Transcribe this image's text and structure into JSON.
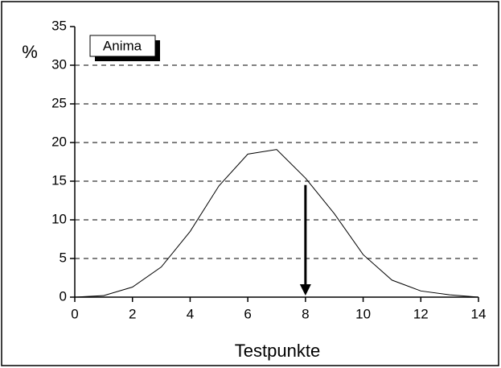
{
  "chart_data": {
    "type": "line",
    "x": [
      0,
      1,
      2,
      3,
      4,
      5,
      6,
      7,
      8,
      9,
      10,
      11,
      12,
      13,
      14
    ],
    "series": [
      {
        "name": "Anima",
        "color": "#000000",
        "values": [
          0,
          0.2,
          1.3,
          3.9,
          8.5,
          14.4,
          18.5,
          19.1,
          15.4,
          10.8,
          5.5,
          2.2,
          0.8,
          0.3,
          0
        ]
      }
    ],
    "xlim": [
      0,
      14
    ],
    "xticks": [
      0,
      2,
      4,
      6,
      8,
      10,
      12,
      14
    ],
    "ylim": [
      0,
      35
    ],
    "yticks": [
      0,
      5,
      10,
      15,
      20,
      25,
      30,
      35
    ],
    "xlabel": "Testpunkte",
    "ylabel": "%",
    "grid": true,
    "legend": "upper left",
    "arrow": {
      "x": 8,
      "y_start": 14.5,
      "y_end": 0
    }
  }
}
